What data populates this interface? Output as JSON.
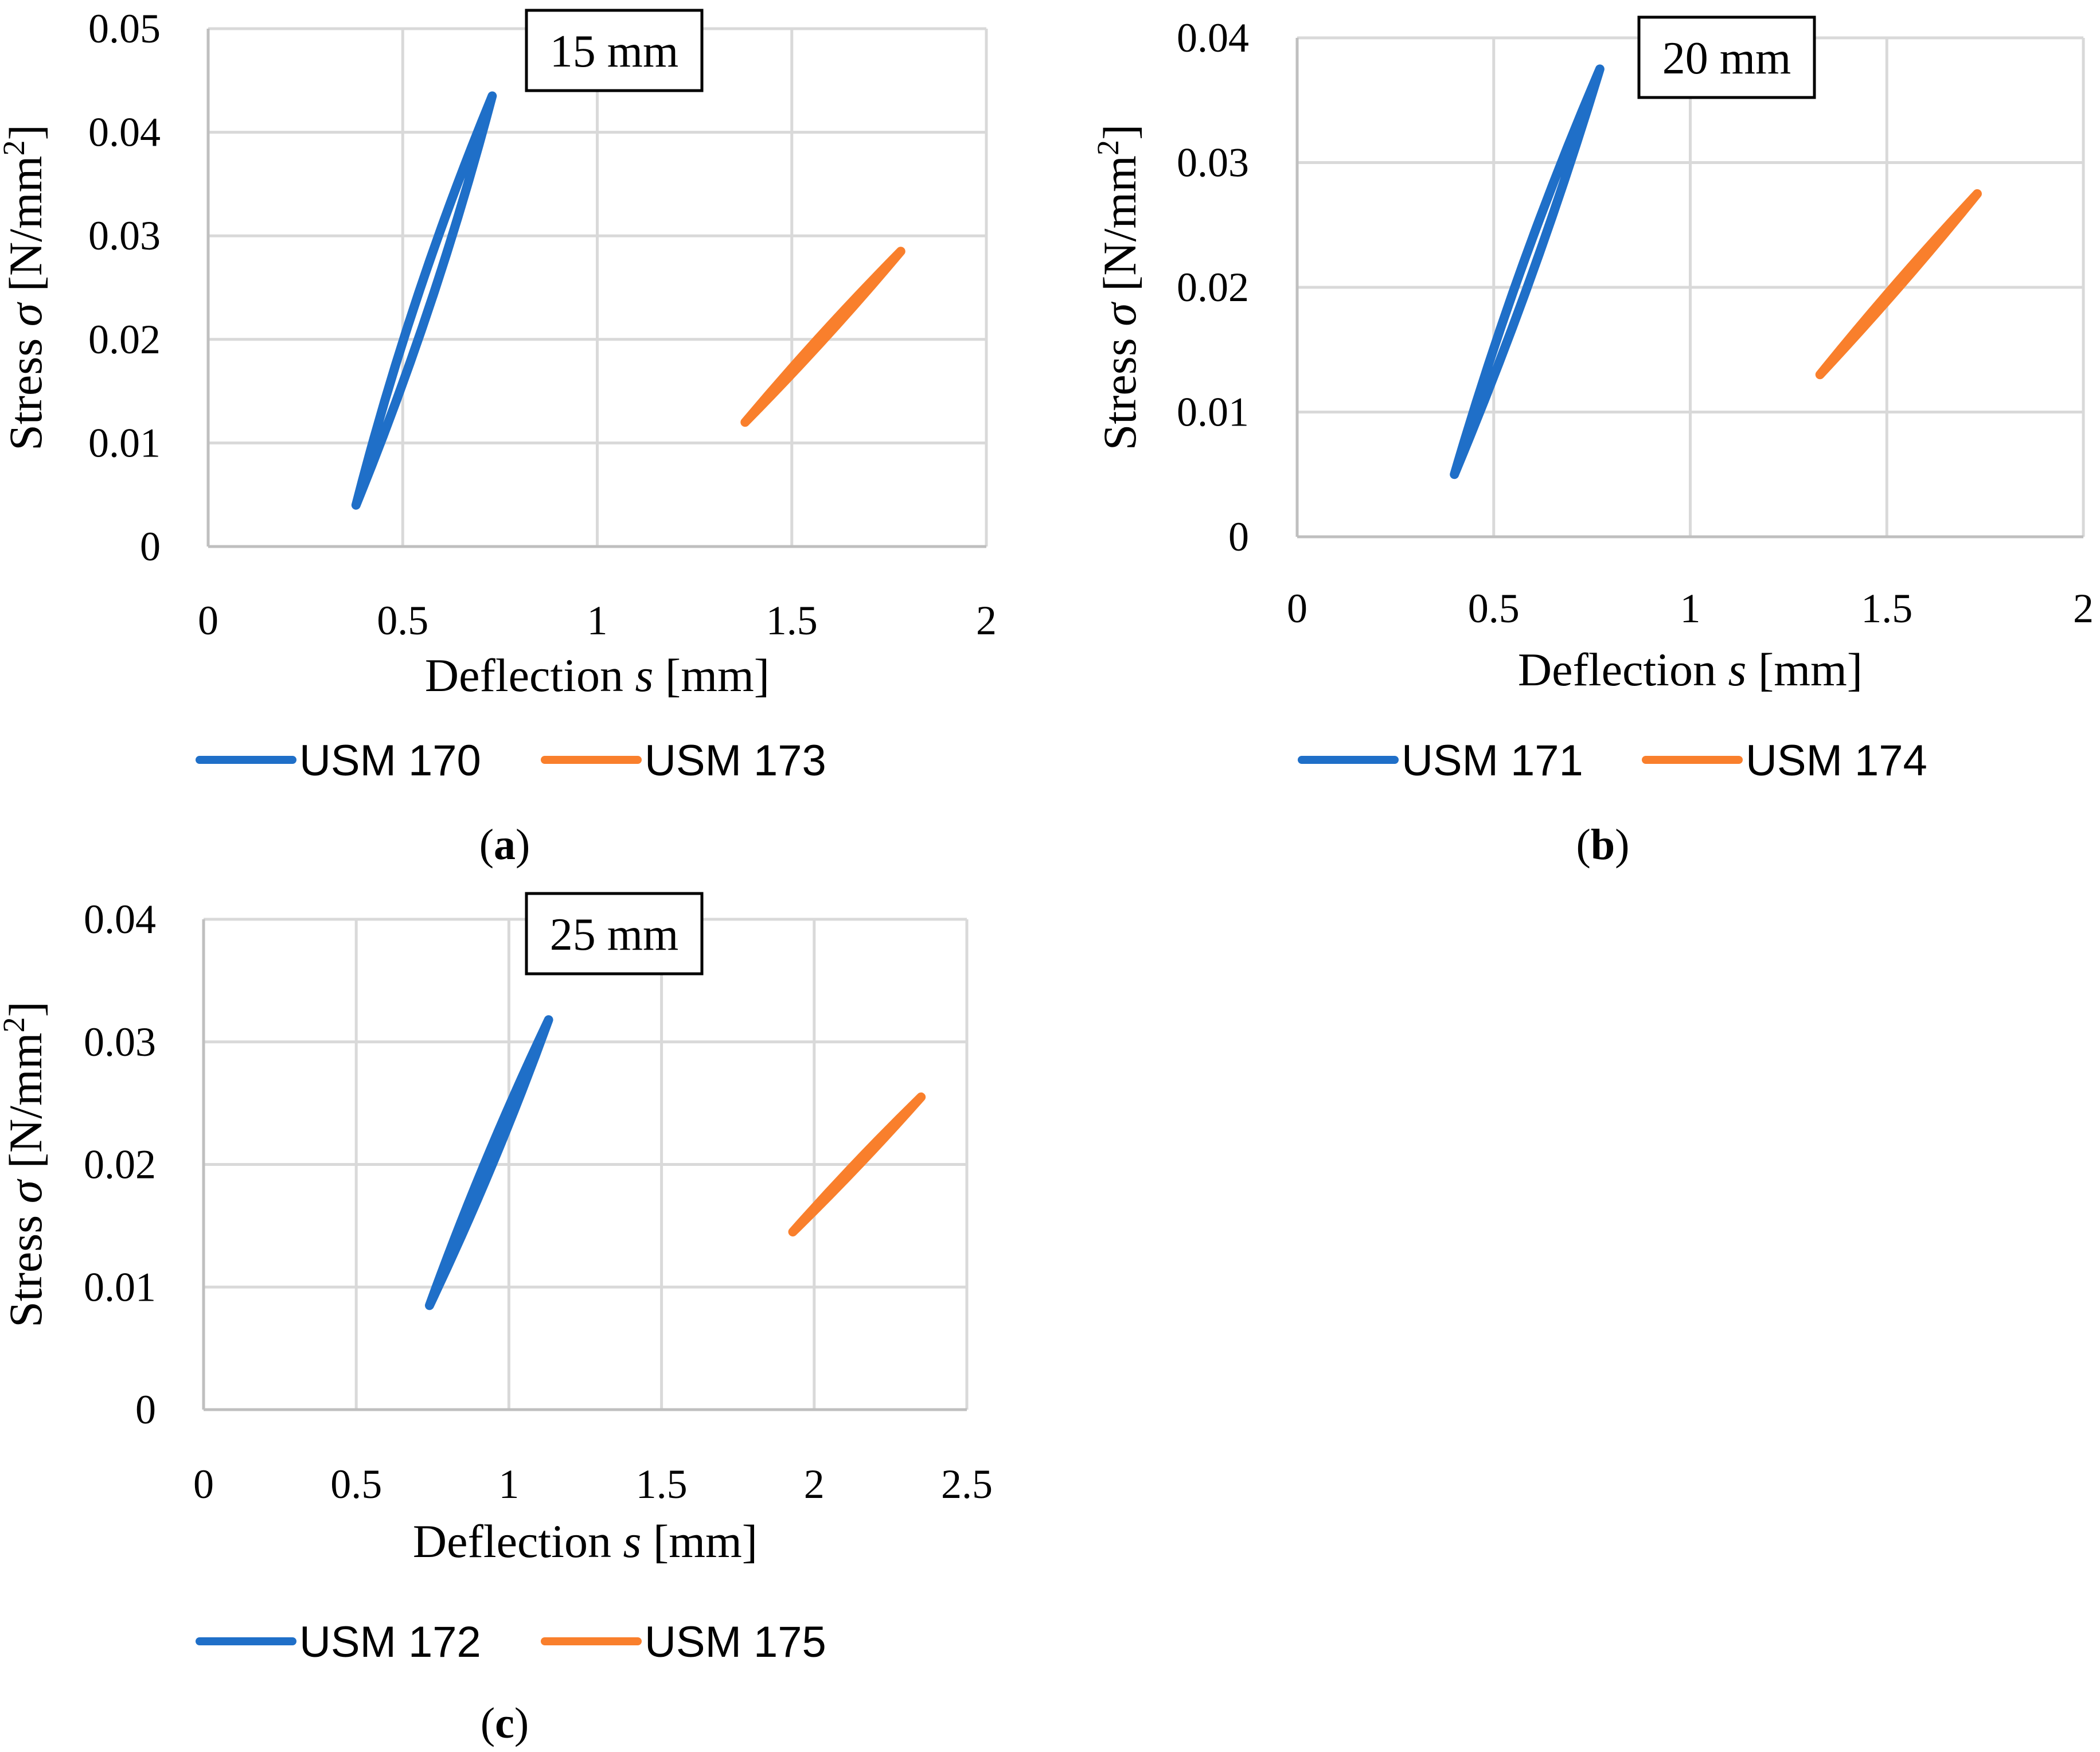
{
  "colors": {
    "blue": "#1f6fc8",
    "orange": "#f97f2c"
  },
  "chart_data": [
    {
      "id": "a",
      "type": "line",
      "caption_letter": "a",
      "box_label": "15 mm",
      "xlabel_pre": "Deflection ",
      "xlabel_var": "s",
      "xlabel_post": " [mm]",
      "ylabel_pre": "Stress ",
      "ylabel_var": "σ",
      "ylabel_post": " [N/mm",
      "ylabel_sup": "2",
      "ylabel_end": "]",
      "xlim": [
        0,
        2
      ],
      "ylim": [
        0,
        0.05
      ],
      "xticks": [
        "0",
        "0.5",
        "1",
        "1.5",
        "2"
      ],
      "yticks": [
        "0",
        "0.01",
        "0.02",
        "0.03",
        "0.04",
        "0.05"
      ],
      "series": [
        {
          "name": "USM 170",
          "color": "blue",
          "x_start": 0.38,
          "y_start": 0.004,
          "x_end": 0.73,
          "y_end": 0.0435,
          "bulge": 0.032,
          "sag": 0.035
        },
        {
          "name": "USM 173",
          "color": "orange",
          "x_start": 1.38,
          "y_start": 0.012,
          "x_end": 1.78,
          "y_end": 0.0285,
          "bulge": 0.02,
          "sag": 0.02
        }
      ]
    },
    {
      "id": "b",
      "type": "line",
      "caption_letter": "b",
      "box_label": "20 mm",
      "xlabel_pre": "Deflection ",
      "xlabel_var": "s",
      "xlabel_post": " [mm]",
      "ylabel_pre": "Stress ",
      "ylabel_var": "σ",
      "ylabel_post": " [N/mm",
      "ylabel_sup": "2",
      "ylabel_end": "]",
      "xlim": [
        0,
        2
      ],
      "ylim": [
        0,
        0.04
      ],
      "xticks": [
        "0",
        "0.5",
        "1",
        "1.5",
        "2"
      ],
      "yticks": [
        "0",
        "0.01",
        "0.02",
        "0.03",
        "0.04"
      ],
      "series": [
        {
          "name": "USM 171",
          "color": "blue",
          "x_start": 0.4,
          "y_start": 0.005,
          "x_end": 0.77,
          "y_end": 0.0375,
          "bulge": 0.025,
          "sag": 0.03
        },
        {
          "name": "USM 174",
          "color": "orange",
          "x_start": 1.33,
          "y_start": 0.013,
          "x_end": 1.73,
          "y_end": 0.0275,
          "bulge": 0.018,
          "sag": 0.018
        }
      ]
    },
    {
      "id": "c",
      "type": "line",
      "caption_letter": "c",
      "box_label": "25 mm",
      "xlabel_pre": "Deflection ",
      "xlabel_var": "s",
      "xlabel_post": " [mm]",
      "ylabel_pre": "Stress ",
      "ylabel_var": "σ",
      "ylabel_post": " [N/mm",
      "ylabel_sup": "2",
      "ylabel_end": "]",
      "xlim": [
        0,
        2.5
      ],
      "ylim": [
        0,
        0.04
      ],
      "xticks": [
        "0",
        "0.5",
        "1",
        "1.5",
        "2",
        "2.5"
      ],
      "yticks": [
        "0",
        "0.01",
        "0.02",
        "0.03",
        "0.04"
      ],
      "series": [
        {
          "name": "USM 172",
          "color": "blue",
          "x_start": 0.74,
          "y_start": 0.0085,
          "x_end": 1.13,
          "y_end": 0.0318,
          "bulge": 0.024,
          "sag": 0.024
        },
        {
          "name": "USM 175",
          "color": "orange",
          "x_start": 1.93,
          "y_start": 0.0145,
          "x_end": 2.35,
          "y_end": 0.0255,
          "bulge": 0.018,
          "sag": 0.018
        }
      ]
    }
  ]
}
